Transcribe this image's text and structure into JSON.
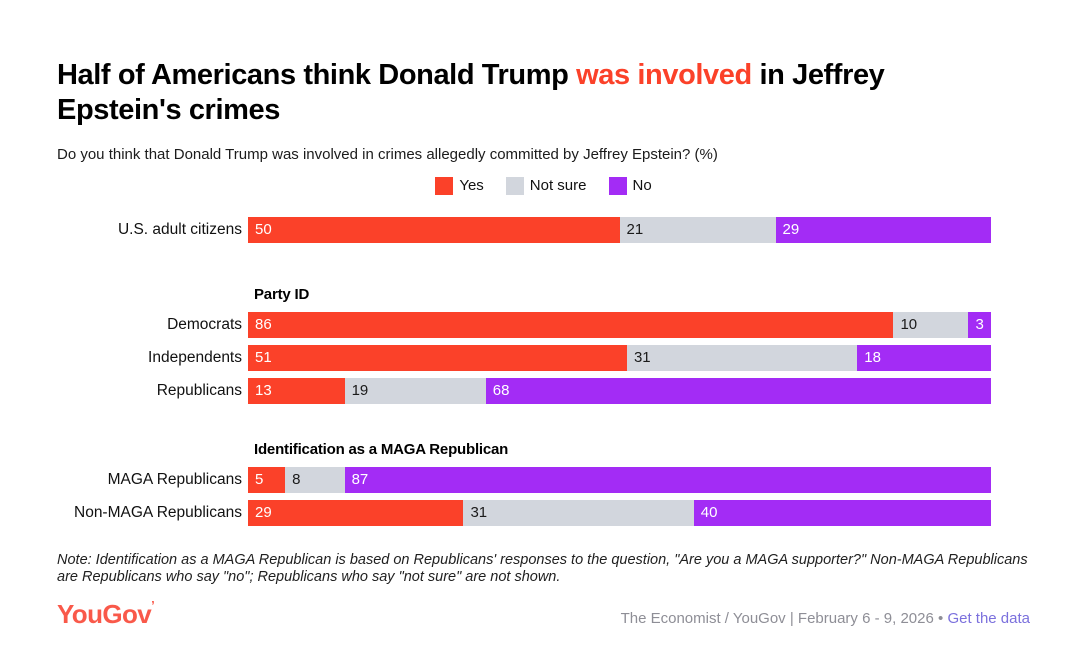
{
  "title": {
    "pre": "Half of Americans think Donald Trump ",
    "highlight": "was involved",
    "post": " in Jeffrey Epstein's crimes"
  },
  "subtitle": "Do you think that Donald Trump was involved in crimes allegedly committed by Jeffrey Epstein? (%)",
  "legend": [
    {
      "label": "Yes",
      "color": "#fb4129",
      "text_color": "#ffffff"
    },
    {
      "label": "Not sure",
      "color": "#d2d6dd",
      "text_color": "#1b1b1b"
    },
    {
      "label": "No",
      "color": "#a32cf5",
      "text_color": "#ffffff"
    }
  ],
  "chart_data": {
    "type": "bar",
    "orientation": "horizontal",
    "stacked": true,
    "units": "%",
    "series_names": [
      "Yes",
      "Not sure",
      "No"
    ],
    "groups": [
      {
        "header": "",
        "rows": [
          {
            "label": "U.S. adult citizens",
            "values": [
              50,
              21,
              29
            ]
          }
        ]
      },
      {
        "header": "Party ID",
        "rows": [
          {
            "label": "Democrats",
            "values": [
              86,
              10,
              3
            ]
          },
          {
            "label": "Independents",
            "values": [
              51,
              31,
              18
            ]
          },
          {
            "label": "Republicans",
            "values": [
              13,
              19,
              68
            ]
          }
        ]
      },
      {
        "header": "Identification as a MAGA Republican",
        "rows": [
          {
            "label": "MAGA Republicans",
            "values": [
              5,
              8,
              87
            ]
          },
          {
            "label": "Non-MAGA Republicans",
            "values": [
              29,
              31,
              40
            ]
          }
        ]
      }
    ]
  },
  "note": "Note: Identification as a MAGA Republican is based on Republicans' responses to the question, \"Are you a MAGA supporter?\" Non-MAGA Republicans are Republicans who say \"no\"; Republicans who say \"not sure\" are not shown.",
  "footer": {
    "logo": "YouGov",
    "logo_mark": "’",
    "attribution": "The Economist / YouGov | February 6 - 9, 2026",
    "separator": "•",
    "link_label": "Get the data"
  }
}
